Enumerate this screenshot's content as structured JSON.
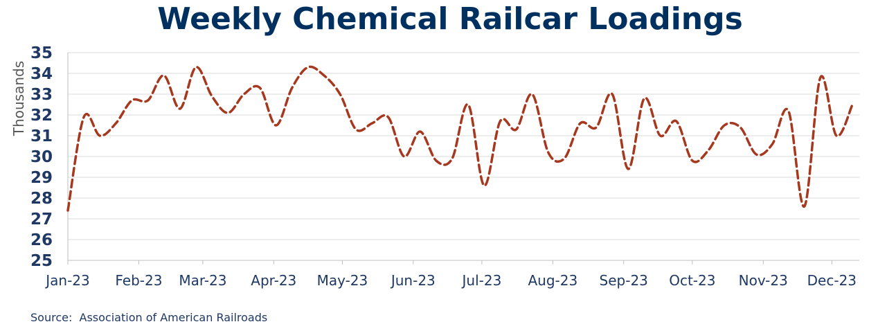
{
  "chart_data": {
    "type": "line",
    "title": "Weekly Chemical Railcar Loadings",
    "ylabel": "Thousands",
    "xlabel": "",
    "ylim": [
      25,
      35
    ],
    "yticks": [
      "25",
      "26",
      "27",
      "28",
      "29",
      "30",
      "31",
      "32",
      "33",
      "34",
      "35"
    ],
    "xticks": [
      "Jan-23",
      "Feb-23",
      "Mar-23",
      "Apr-23",
      "May-23",
      "Jun-23",
      "Jul-23",
      "Aug-23",
      "Sep-23",
      "Oct-23",
      "Nov-23",
      "Dec-23"
    ],
    "grid": true,
    "line_color": "#a5381e",
    "line_style": "dashed",
    "series": [
      {
        "name": "",
        "x": [
          "2023-01-01",
          "2023-01-08",
          "2023-01-15",
          "2023-01-22",
          "2023-01-29",
          "2023-02-05",
          "2023-02-12",
          "2023-02-19",
          "2023-02-26",
          "2023-03-05",
          "2023-03-12",
          "2023-03-19",
          "2023-03-26",
          "2023-04-02",
          "2023-04-09",
          "2023-04-16",
          "2023-04-23",
          "2023-04-30",
          "2023-05-07",
          "2023-05-14",
          "2023-05-21",
          "2023-05-28",
          "2023-06-04",
          "2023-06-11",
          "2023-06-18",
          "2023-06-25",
          "2023-07-02",
          "2023-07-09",
          "2023-07-16",
          "2023-07-23",
          "2023-07-30",
          "2023-08-06",
          "2023-08-13",
          "2023-08-20",
          "2023-08-27",
          "2023-09-03",
          "2023-09-10",
          "2023-09-17",
          "2023-09-24",
          "2023-10-01",
          "2023-10-08",
          "2023-10-15",
          "2023-10-22",
          "2023-10-29",
          "2023-11-05",
          "2023-11-12",
          "2023-11-19",
          "2023-11-26",
          "2023-12-03",
          "2023-12-10"
        ],
        "values": [
          27.4,
          31.9,
          31.0,
          31.6,
          32.7,
          32.7,
          33.9,
          32.3,
          34.3,
          32.9,
          32.1,
          33.0,
          33.3,
          31.5,
          33.3,
          34.3,
          33.9,
          33.0,
          31.3,
          31.6,
          31.9,
          30.0,
          31.2,
          29.8,
          29.9,
          32.5,
          28.6,
          31.7,
          31.3,
          33.0,
          30.2,
          29.9,
          31.6,
          31.4,
          33.0,
          29.4,
          32.8,
          31.0,
          31.7,
          29.8,
          30.3,
          31.5,
          31.4,
          30.1,
          30.6,
          32.2,
          27.6,
          33.8,
          31.0,
          32.5
        ]
      }
    ]
  },
  "source": {
    "label": "Source:",
    "text": "Association of American Railroads"
  }
}
